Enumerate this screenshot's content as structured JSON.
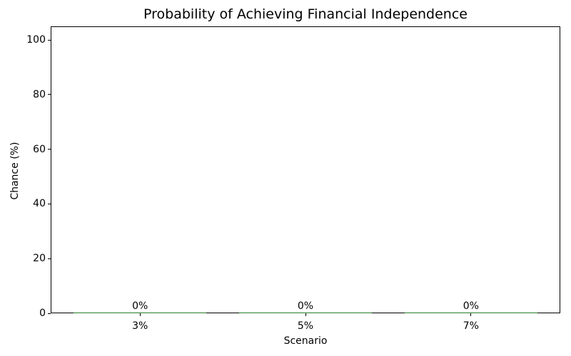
{
  "chart_data": {
    "type": "bar",
    "title": "Probability of Achieving Financial Independence",
    "xlabel": "Scenario",
    "ylabel": "Chance (%)",
    "categories": [
      "3%",
      "5%",
      "7%"
    ],
    "values": [
      0,
      0,
      0
    ],
    "value_labels": [
      "0%",
      "0%",
      "0%"
    ],
    "yticks": [
      0,
      20,
      40,
      60,
      80,
      100
    ],
    "ylim": [
      0,
      105
    ],
    "bar_color": "#90ee90",
    "bar_width_fraction": 0.8,
    "grid": false,
    "legend": null,
    "text_color": "#000000",
    "axis_color": "#000000",
    "background_color": "#ffffff"
  }
}
